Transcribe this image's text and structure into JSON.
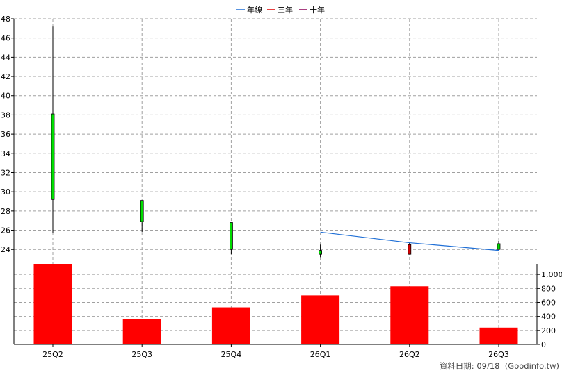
{
  "chart_data": [
    {
      "type": "candlestick",
      "categories": [
        "25Q2",
        "25Q3",
        "25Q4",
        "26Q1",
        "26Q2",
        "26Q3"
      ],
      "ylim": [
        22.5,
        48
      ],
      "yticks": [
        24,
        26,
        28,
        30,
        32,
        34,
        36,
        38,
        40,
        42,
        44,
        46,
        48
      ],
      "grid": true,
      "legend_position": "top-center",
      "legend": [
        {
          "name": "年線",
          "color": "#1f6fd6"
        },
        {
          "name": "三年",
          "color": "#e00000"
        },
        {
          "name": "十年",
          "color": "#8a0057"
        }
      ],
      "candles": [
        {
          "category": "25Q2",
          "open": 29.2,
          "close": 38.1,
          "high": 47.2,
          "low": 25.7,
          "color": "#00dd00"
        },
        {
          "category": "25Q3",
          "open": 26.9,
          "close": 29.1,
          "high": 29.1,
          "low": 25.8,
          "color": "#00dd00"
        },
        {
          "category": "25Q4",
          "open": 24.0,
          "close": 26.8,
          "high": 26.8,
          "low": 23.5,
          "color": "#00dd00"
        },
        {
          "category": "26Q1",
          "open": 23.5,
          "close": 23.9,
          "high": 24.5,
          "low": 23.2,
          "color": "#00dd00"
        },
        {
          "category": "26Q2",
          "open": 24.5,
          "close": 23.5,
          "high": 24.7,
          "low": 23.5,
          "color": "#dd0000"
        },
        {
          "category": "26Q3",
          "open": 24.0,
          "close": 24.6,
          "high": 24.9,
          "low": 24.0,
          "color": "#00dd00"
        }
      ],
      "series": [
        {
          "name": "年線",
          "color": "#1f6fd6",
          "points": [
            {
              "x": "26Q1",
              "y": 25.8
            },
            {
              "x": "26Q2",
              "y": 24.7
            },
            {
              "x": "26Q3",
              "y": 23.9
            }
          ]
        }
      ]
    },
    {
      "type": "bar",
      "categories": [
        "25Q2",
        "25Q3",
        "25Q4",
        "26Q1",
        "26Q2",
        "26Q3"
      ],
      "values": [
        1150,
        360,
        530,
        700,
        830,
        240
      ],
      "bar_color": "#ff0000",
      "ylim": [
        0,
        1150
      ],
      "yticks": [
        0,
        200,
        400,
        600,
        800,
        1000
      ],
      "ytick_labels": [
        "0",
        "200",
        "400",
        "600",
        "800",
        "1,000"
      ],
      "grid": true
    }
  ],
  "footer": {
    "text": "資料日期: 09/18  (Goodinfo.tw)"
  }
}
